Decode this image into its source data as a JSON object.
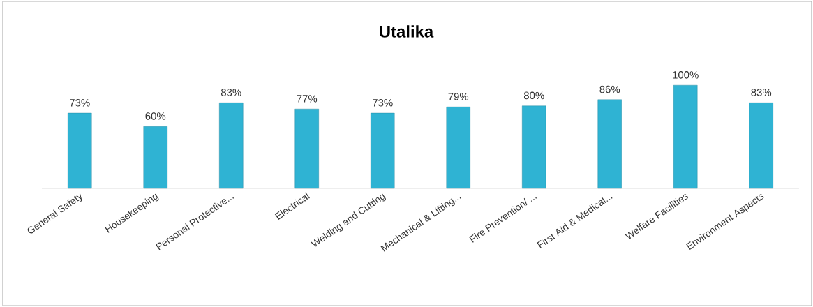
{
  "chart_data": {
    "type": "bar",
    "title": "Utalika",
    "categories": [
      "General Safety",
      "Housekeeping",
      "Personal Protective...",
      "Electrical",
      "Welding and Cutting",
      "Mechanical & Lifting...",
      "Fire Prevention/ ...",
      "First Aid & Medical...",
      "Welfare Facilities",
      "Environment Aspects"
    ],
    "values": [
      73,
      60,
      83,
      77,
      73,
      79,
      80,
      86,
      100,
      83
    ],
    "value_labels": [
      "73%",
      "60%",
      "83%",
      "77%",
      "73%",
      "79%",
      "80%",
      "86%",
      "100%",
      "83%"
    ],
    "color": "#2fb3d3"
  }
}
